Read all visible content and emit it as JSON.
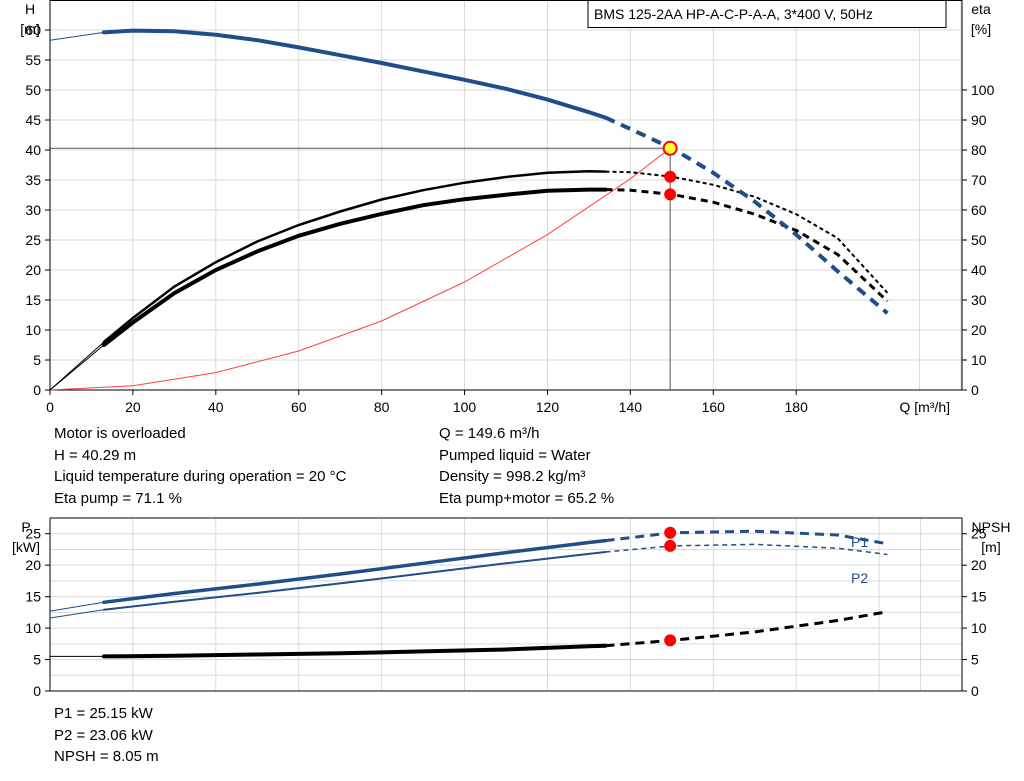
{
  "chart_data": [
    {
      "type": "line",
      "title": "BMS 125-2AA HP-A-C-P-A-A, 3*400 V, 50Hz",
      "xlabel": "Q [m³/h]",
      "ylabel_left": [
        "H",
        "[m]"
      ],
      "ylabel_right": [
        "eta",
        "[%]"
      ],
      "xlim": [
        0,
        220
      ],
      "ylim_left": [
        0,
        65
      ],
      "ylim_right": [
        0,
        130
      ],
      "x_ticks": [
        0,
        20,
        40,
        60,
        80,
        100,
        120,
        140,
        160,
        180
      ],
      "y_ticks_left": [
        0,
        5,
        10,
        15,
        20,
        25,
        30,
        35,
        40,
        45,
        50,
        55,
        60
      ],
      "y_ticks_right": [
        0,
        10,
        20,
        30,
        40,
        50,
        60,
        70,
        80,
        90,
        100
      ],
      "grid": true,
      "series": [
        {
          "key": "H",
          "axis": "left",
          "color": "#1f4e89",
          "x": [
            0,
            13,
            20,
            30,
            40,
            50,
            60,
            70,
            80,
            90,
            100,
            110,
            120,
            130,
            134,
            140,
            150,
            160,
            170,
            180,
            190,
            202
          ],
          "y": [
            58.3,
            59.6,
            59.9,
            59.8,
            59.2,
            58.3,
            57.1,
            55.8,
            54.5,
            53.1,
            51.7,
            50.2,
            48.4,
            46.3,
            45.4,
            43.5,
            40.3,
            36.2,
            31.4,
            25.9,
            19.8,
            12.8
          ]
        },
        {
          "key": "eta-pump",
          "axis": "right",
          "color": "#000000",
          "x": [
            0,
            13,
            20,
            30,
            40,
            50,
            60,
            70,
            80,
            90,
            100,
            110,
            120,
            130,
            134,
            140,
            150,
            160,
            170,
            180,
            190,
            202
          ],
          "y": [
            0,
            16,
            24,
            34.5,
            42.6,
            49.5,
            55,
            59.5,
            63.5,
            66.6,
            69.1,
            71,
            72.4,
            72.9,
            72.8,
            72.6,
            71.1,
            68.4,
            64.4,
            58.6,
            50.6,
            32.4
          ]
        },
        {
          "key": "eta-pump-motor",
          "axis": "right",
          "color": "#000000",
          "x": [
            0,
            13,
            20,
            30,
            40,
            50,
            60,
            70,
            80,
            90,
            100,
            110,
            120,
            130,
            134,
            140,
            150,
            160,
            170,
            180,
            190,
            202
          ],
          "y": [
            0,
            15,
            22.5,
            32.3,
            40,
            46.2,
            51.4,
            55.4,
            58.7,
            61.6,
            63.6,
            65.1,
            66.4,
            66.8,
            66.8,
            66.6,
            65.2,
            62.6,
            58.6,
            53.2,
            45.2,
            29.6
          ]
        },
        {
          "key": "system-curve",
          "axis": "left",
          "color": "#ff4040",
          "x": [
            0,
            20,
            40,
            60,
            80,
            100,
            120,
            140,
            149.6
          ],
          "y": [
            0,
            0.7,
            2.9,
            6.5,
            11.5,
            18,
            25.9,
            35.2,
            40.3
          ]
        }
      ],
      "duty_point": {
        "Q": 149.6,
        "H": 40.29,
        "eta_pump": 71.1,
        "eta_pump_motor": 65.2
      },
      "annotations": [
        "Motor is overloaded",
        "H = 40.29 m",
        "Liquid temperature during operation = 20 °C",
        "Eta pump = 71.1 %",
        "Q = 149.6 m³/h",
        "Pumped liquid = Water",
        "Density = 998.2 kg/m³",
        "Eta pump+motor = 65.2 %"
      ]
    },
    {
      "type": "line",
      "ylabel_left": [
        "P",
        "[kW]"
      ],
      "ylabel_right": [
        "NPSH",
        "[m]"
      ],
      "xlim": [
        0,
        220
      ],
      "ylim_left": [
        0,
        27.5
      ],
      "ylim_right": [
        0,
        27.5
      ],
      "y_ticks_left": [
        0,
        5,
        10,
        15,
        20,
        25
      ],
      "y_ticks_right": [
        0,
        5,
        10,
        15,
        20,
        25
      ],
      "grid": true,
      "series": [
        {
          "key": "P1",
          "name": "P1",
          "axis": "left",
          "color": "#1f4e89",
          "x": [
            0,
            13,
            30,
            50,
            70,
            90,
            110,
            130,
            134,
            150,
            170,
            190,
            202
          ],
          "y": [
            12.7,
            14.1,
            15.5,
            17,
            18.6,
            20.3,
            22,
            23.6,
            23.9,
            25.15,
            25.4,
            24.8,
            23.4
          ]
        },
        {
          "key": "P2",
          "name": "P2",
          "axis": "left",
          "color": "#1f4e89",
          "x": [
            0,
            13,
            30,
            50,
            70,
            90,
            110,
            130,
            134,
            150,
            170,
            190,
            202
          ],
          "y": [
            11.6,
            12.9,
            14.2,
            15.6,
            17.1,
            18.7,
            20.3,
            21.8,
            22.1,
            23.06,
            23.3,
            22.7,
            21.7
          ]
        },
        {
          "key": "NPSH",
          "axis": "right",
          "color": "#000000",
          "x": [
            0,
            13,
            30,
            50,
            70,
            90,
            110,
            130,
            134,
            150,
            170,
            190,
            202
          ],
          "y": [
            5.5,
            5.5,
            5.6,
            5.8,
            6,
            6.3,
            6.6,
            7.1,
            7.2,
            8.05,
            9.4,
            11.2,
            12.6
          ]
        }
      ],
      "duty_point": {
        "Q": 149.6,
        "P1": 25.15,
        "P2": 23.06,
        "NPSH": 8.05
      },
      "annotations": [
        "P1 = 25.15 kW",
        "P2 = 23.06 kW",
        "NPSH = 8.05 m"
      ]
    }
  ]
}
